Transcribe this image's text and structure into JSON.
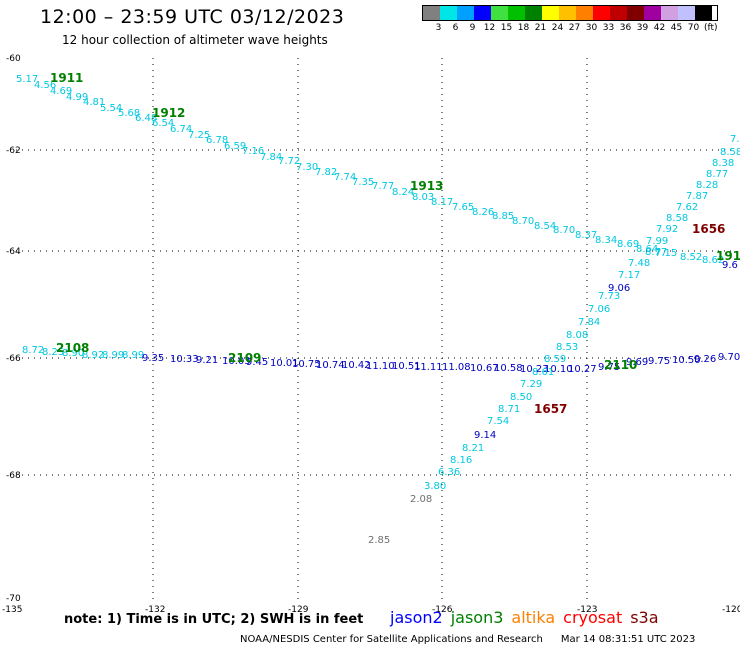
{
  "header": {
    "title": "12:00 – 23:59 UTC 03/12/2023",
    "subtitle": "12 hour collection of altimeter wave heights"
  },
  "colorbar": {
    "colors": [
      "#808080",
      "#00e5e5",
      "#00a0ff",
      "#0000ff",
      "#40e040",
      "#00c000",
      "#008000",
      "#ffff00",
      "#ffc000",
      "#ff8000",
      "#ff0000",
      "#c00000",
      "#800000",
      "#a000a0",
      "#d0a0e0",
      "#c0c0ff",
      "#000000"
    ],
    "labels": [
      "3",
      "6",
      "9",
      "12",
      "15",
      "18",
      "21",
      "24",
      "27",
      "30",
      "33",
      "36",
      "39",
      "42",
      "45",
      "70"
    ],
    "unit": "(ft)"
  },
  "axes": {
    "lat_ticks": [
      "-60",
      "-62",
      "-64",
      "-66",
      "-68",
      "-70"
    ],
    "lon_ticks": [
      "-135",
      "-132",
      "-129",
      "-126",
      "-123",
      "-120"
    ]
  },
  "colors": {
    "cyan": "#00c8e0",
    "blue": "#0000c0",
    "green": "#008000",
    "darkred": "#800000",
    "gray": "#707070",
    "grid": "#000000"
  },
  "tracks": [
    {
      "name": "track-1911",
      "points": [
        {
          "t": "5.17",
          "c": "cyan"
        },
        {
          "t": "4.56",
          "c": "cyan"
        },
        {
          "t": "4.69",
          "c": "cyan"
        },
        {
          "t": "4.99",
          "c": "cyan"
        },
        {
          "t": "4.81",
          "c": "cyan"
        },
        {
          "t": "5.54",
          "c": "cyan"
        },
        {
          "t": "5.68",
          "c": "cyan"
        },
        {
          "t": "6.48",
          "c": "cyan"
        },
        {
          "t": "6.54",
          "c": "cyan"
        },
        {
          "t": "6.74",
          "c": "cyan"
        },
        {
          "t": "7.25",
          "c": "cyan"
        },
        {
          "t": "6.78",
          "c": "cyan"
        },
        {
          "t": "6.59",
          "c": "cyan"
        },
        {
          "t": "7.16",
          "c": "cyan"
        },
        {
          "t": "7.84",
          "c": "cyan"
        },
        {
          "t": "7.72",
          "c": "cyan"
        },
        {
          "t": "7.30",
          "c": "cyan"
        },
        {
          "t": "7.82",
          "c": "cyan"
        },
        {
          "t": "7.74",
          "c": "cyan"
        },
        {
          "t": "7.35",
          "c": "cyan"
        },
        {
          "t": "7.77",
          "c": "cyan"
        },
        {
          "t": "8.24",
          "c": "cyan"
        },
        {
          "t": "8.03",
          "c": "cyan"
        },
        {
          "t": "8.17",
          "c": "cyan"
        },
        {
          "t": "7.65",
          "c": "cyan"
        },
        {
          "t": "8.26",
          "c": "cyan"
        },
        {
          "t": "8.85",
          "c": "cyan"
        },
        {
          "t": "8.70",
          "c": "cyan"
        },
        {
          "t": "8.54",
          "c": "cyan"
        },
        {
          "t": "8.70",
          "c": "cyan"
        },
        {
          "t": "8.37",
          "c": "cyan"
        },
        {
          "t": "8.34",
          "c": "cyan"
        },
        {
          "t": "8.69",
          "c": "cyan"
        },
        {
          "t": "8.64",
          "c": "cyan"
        },
        {
          "t": "8.77",
          "c": "cyan"
        },
        {
          "t": "7.15",
          "c": "cyan"
        },
        {
          "t": "8.52",
          "c": "cyan"
        },
        {
          "t": "8.62",
          "c": "cyan"
        },
        {
          "t": "9.6",
          "c": "blue"
        }
      ]
    },
    {
      "name": "track-2108",
      "points": [
        {
          "t": "8.72",
          "c": "cyan"
        },
        {
          "t": "8.25",
          "c": "cyan"
        },
        {
          "t": "8.90",
          "c": "cyan"
        },
        {
          "t": "8.92",
          "c": "cyan"
        },
        {
          "t": "8.99",
          "c": "cyan"
        },
        {
          "t": "8.99",
          "c": "cyan"
        },
        {
          "t": "9.35",
          "c": "blue"
        },
        {
          "t": "10.33",
          "c": "blue"
        },
        {
          "t": "9.21",
          "c": "blue"
        },
        {
          "t": "10.03",
          "c": "blue"
        },
        {
          "t": "9.45",
          "c": "blue"
        },
        {
          "t": "10.01",
          "c": "blue"
        },
        {
          "t": "10.75",
          "c": "blue"
        },
        {
          "t": "10.74",
          "c": "blue"
        },
        {
          "t": "10.42",
          "c": "blue"
        },
        {
          "t": "11.10",
          "c": "blue"
        },
        {
          "t": "10.51",
          "c": "blue"
        },
        {
          "t": "11.11",
          "c": "blue"
        },
        {
          "t": "11.08",
          "c": "blue"
        },
        {
          "t": "10.67",
          "c": "blue"
        },
        {
          "t": "10.58",
          "c": "blue"
        },
        {
          "t": "10.23",
          "c": "blue"
        },
        {
          "t": "10.10",
          "c": "blue"
        },
        {
          "t": "10.27",
          "c": "blue"
        },
        {
          "t": "9.75",
          "c": "blue"
        },
        {
          "t": "9.69",
          "c": "blue"
        },
        {
          "t": "9.75",
          "c": "blue"
        },
        {
          "t": "10.50",
          "c": "blue"
        },
        {
          "t": "9.26",
          "c": "blue"
        },
        {
          "t": "9.70",
          "c": "blue"
        }
      ]
    },
    {
      "name": "track-1657",
      "points": [
        {
          "t": "2.85",
          "c": "gray"
        },
        {
          "t": "2.08",
          "c": "gray"
        },
        {
          "t": "3.80",
          "c": "cyan"
        },
        {
          "t": "6.36",
          "c": "cyan"
        },
        {
          "t": "8.16",
          "c": "cyan"
        },
        {
          "t": "8.21",
          "c": "cyan"
        },
        {
          "t": "9.14",
          "c": "blue"
        },
        {
          "t": "7.54",
          "c": "cyan"
        },
        {
          "t": "8.71",
          "c": "cyan"
        },
        {
          "t": "8.50",
          "c": "cyan"
        },
        {
          "t": "7.29",
          "c": "cyan"
        },
        {
          "t": "8.61",
          "c": "cyan"
        },
        {
          "t": "8.59",
          "c": "cyan"
        },
        {
          "t": "8.53",
          "c": "cyan"
        },
        {
          "t": "8.08",
          "c": "cyan"
        },
        {
          "t": "7.84",
          "c": "cyan"
        },
        {
          "t": "7.06",
          "c": "cyan"
        },
        {
          "t": "7.73",
          "c": "cyan"
        },
        {
          "t": "9.06",
          "c": "blue"
        },
        {
          "t": "7.17",
          "c": "cyan"
        },
        {
          "t": "7.48",
          "c": "cyan"
        },
        {
          "t": "7.99",
          "c": "cyan"
        },
        {
          "t": "7.92",
          "c": "cyan"
        },
        {
          "t": "8.58",
          "c": "cyan"
        },
        {
          "t": "7.62",
          "c": "cyan"
        },
        {
          "t": "7.87",
          "c": "cyan"
        },
        {
          "t": "8.28",
          "c": "cyan"
        },
        {
          "t": "8.77",
          "c": "cyan"
        },
        {
          "t": "8.38",
          "c": "cyan"
        },
        {
          "t": "8.58",
          "c": "cyan"
        },
        {
          "t": "7.",
          "c": "cyan"
        }
      ]
    }
  ],
  "time_labels": [
    {
      "t": "1911",
      "c": "green"
    },
    {
      "t": "1912",
      "c": "green"
    },
    {
      "t": "1913",
      "c": "green"
    },
    {
      "t": "191",
      "c": "green"
    },
    {
      "t": "2108",
      "c": "green"
    },
    {
      "t": "2109",
      "c": "green"
    },
    {
      "t": "2110",
      "c": "green"
    },
    {
      "t": "1656",
      "c": "darkred"
    },
    {
      "t": "1657",
      "c": "darkred"
    }
  ],
  "note": "note:  1) Time is in UTC;  2) SWH is in feet",
  "legend": [
    {
      "t": "jason2",
      "color": "#0000ff"
    },
    {
      "t": "jason3",
      "color": "#008000"
    },
    {
      "t": "altika",
      "color": "#ff8000"
    },
    {
      "t": "cryosat",
      "color": "#ff0000"
    },
    {
      "t": "s3a",
      "color": "#800000"
    }
  ],
  "footer": {
    "credit": "NOAA/NESDIS Center for Satellite Applications and Research",
    "timestamp": "Mar 14 08:31:51 UTC 2023"
  }
}
